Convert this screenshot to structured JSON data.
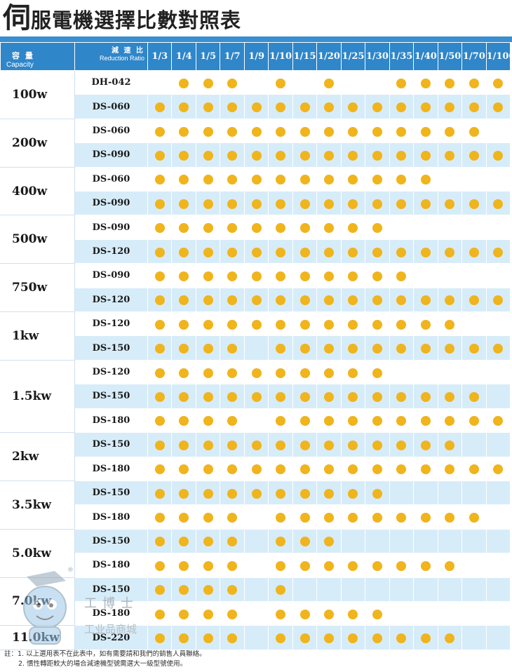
{
  "title": {
    "first_char": "伺",
    "rest": "服電機選擇比數對照表"
  },
  "header": {
    "capacity_zh": "容 量",
    "capacity_en": "Capacity",
    "ratio_zh": "減 速 比",
    "ratio_en": "Reduction Ratio",
    "ratios": [
      "1/3",
      "1/4",
      "1/5",
      "1/7",
      "1/9",
      "1/10",
      "1/15",
      "1/20",
      "1/25",
      "1/30",
      "1/35",
      "1/40",
      "1/50",
      "1/70",
      "1/100"
    ]
  },
  "groups": [
    {
      "capacity": "100w",
      "rows": [
        {
          "model": "DH-042",
          "dots": [
            0,
            1,
            1,
            1,
            0,
            1,
            0,
            1,
            0,
            0,
            1,
            1,
            1,
            1,
            1
          ]
        },
        {
          "model": "DS-060",
          "dots": [
            1,
            1,
            1,
            1,
            1,
            1,
            1,
            1,
            1,
            1,
            1,
            1,
            1,
            1,
            1
          ]
        }
      ]
    },
    {
      "capacity": "200w",
      "rows": [
        {
          "model": "DS-060",
          "dots": [
            1,
            1,
            1,
            1,
            1,
            1,
            1,
            1,
            1,
            1,
            1,
            1,
            1,
            1,
            0
          ]
        },
        {
          "model": "DS-090",
          "dots": [
            1,
            1,
            1,
            1,
            1,
            1,
            1,
            1,
            1,
            1,
            1,
            1,
            1,
            1,
            1
          ]
        }
      ]
    },
    {
      "capacity": "400w",
      "rows": [
        {
          "model": "DS-060",
          "dots": [
            1,
            1,
            1,
            1,
            1,
            1,
            1,
            1,
            1,
            1,
            1,
            1,
            0,
            0,
            0
          ]
        },
        {
          "model": "DS-090",
          "dots": [
            1,
            1,
            1,
            1,
            1,
            1,
            1,
            1,
            1,
            1,
            1,
            1,
            1,
            1,
            1
          ]
        }
      ]
    },
    {
      "capacity": "500w",
      "rows": [
        {
          "model": "DS-090",
          "dots": [
            1,
            1,
            1,
            1,
            1,
            1,
            1,
            1,
            1,
            1,
            0,
            0,
            0,
            0,
            0
          ]
        },
        {
          "model": "DS-120",
          "dots": [
            1,
            1,
            1,
            1,
            1,
            1,
            1,
            1,
            1,
            1,
            1,
            1,
            1,
            1,
            1
          ]
        }
      ]
    },
    {
      "capacity": "750w",
      "rows": [
        {
          "model": "DS-090",
          "dots": [
            1,
            1,
            1,
            1,
            1,
            1,
            1,
            1,
            1,
            1,
            1,
            0,
            0,
            0,
            0
          ]
        },
        {
          "model": "DS-120",
          "dots": [
            1,
            1,
            1,
            1,
            1,
            1,
            1,
            1,
            1,
            1,
            1,
            1,
            1,
            1,
            1
          ]
        }
      ]
    },
    {
      "capacity": "1kw",
      "rows": [
        {
          "model": "DS-120",
          "dots": [
            1,
            1,
            1,
            1,
            1,
            1,
            1,
            1,
            1,
            1,
            1,
            1,
            1,
            0,
            0
          ]
        },
        {
          "model": "DS-150",
          "dots": [
            1,
            1,
            1,
            1,
            0,
            1,
            1,
            1,
            1,
            1,
            1,
            1,
            1,
            1,
            1
          ]
        }
      ]
    },
    {
      "capacity": "1.5kw",
      "rows": [
        {
          "model": "DS-120",
          "dots": [
            1,
            1,
            1,
            1,
            1,
            1,
            1,
            1,
            1,
            1,
            0,
            0,
            0,
            0,
            0
          ]
        },
        {
          "model": "DS-150",
          "dots": [
            1,
            1,
            1,
            1,
            1,
            1,
            1,
            1,
            1,
            1,
            1,
            1,
            1,
            1,
            0
          ]
        },
        {
          "model": "DS-180",
          "dots": [
            1,
            1,
            1,
            1,
            0,
            1,
            1,
            1,
            1,
            1,
            1,
            1,
            1,
            1,
            1
          ]
        }
      ]
    },
    {
      "capacity": "2kw",
      "rows": [
        {
          "model": "DS-150",
          "dots": [
            1,
            1,
            1,
            1,
            1,
            1,
            1,
            1,
            1,
            1,
            1,
            1,
            1,
            0,
            0
          ]
        },
        {
          "model": "DS-180",
          "dots": [
            1,
            1,
            1,
            1,
            1,
            1,
            1,
            1,
            1,
            1,
            1,
            1,
            1,
            1,
            1
          ]
        }
      ]
    },
    {
      "capacity": "3.5kw",
      "rows": [
        {
          "model": "DS-150",
          "dots": [
            1,
            1,
            1,
            1,
            1,
            1,
            1,
            1,
            1,
            1,
            0,
            0,
            0,
            0,
            0
          ]
        },
        {
          "model": "DS-180",
          "dots": [
            1,
            1,
            1,
            1,
            0,
            1,
            1,
            1,
            1,
            1,
            1,
            1,
            1,
            1,
            0
          ]
        }
      ]
    },
    {
      "capacity": "5.0kw",
      "rows": [
        {
          "model": "DS-150",
          "dots": [
            1,
            1,
            1,
            1,
            0,
            1,
            1,
            1,
            0,
            0,
            0,
            0,
            0,
            0,
            0
          ]
        },
        {
          "model": "DS-180",
          "dots": [
            1,
            1,
            1,
            1,
            0,
            1,
            1,
            1,
            1,
            1,
            1,
            1,
            1,
            0,
            0
          ]
        }
      ]
    },
    {
      "capacity": "7.0kw",
      "rows": [
        {
          "model": "DS-150",
          "dots": [
            1,
            1,
            1,
            1,
            0,
            1,
            0,
            0,
            0,
            0,
            0,
            0,
            0,
            0,
            0
          ]
        },
        {
          "model": "DS-180",
          "dots": [
            1,
            1,
            1,
            1,
            0,
            1,
            1,
            1,
            1,
            1,
            0,
            0,
            0,
            0,
            0
          ]
        }
      ]
    },
    {
      "capacity": "11.0kw",
      "rows": [
        {
          "model": "DS-220",
          "dots": [
            1,
            1,
            1,
            1,
            0,
            1,
            1,
            1,
            1,
            1,
            1,
            1,
            1,
            0,
            0
          ]
        }
      ]
    }
  ],
  "notes": {
    "line1": "註：1. 以上選用表不在此表中，如有需要請和我們的銷售人員聯絡。",
    "line2": "2. 慣性轉距較大的場合減速機型號需選大一級型號使用。"
  },
  "watermark": {
    "registered": "®",
    "brand": "工博士",
    "subtitle": "工业品商城"
  },
  "colors": {
    "header_bg": "#2f86c9",
    "row_alt": "#d7ecf9",
    "dot": "#f0b41c"
  }
}
